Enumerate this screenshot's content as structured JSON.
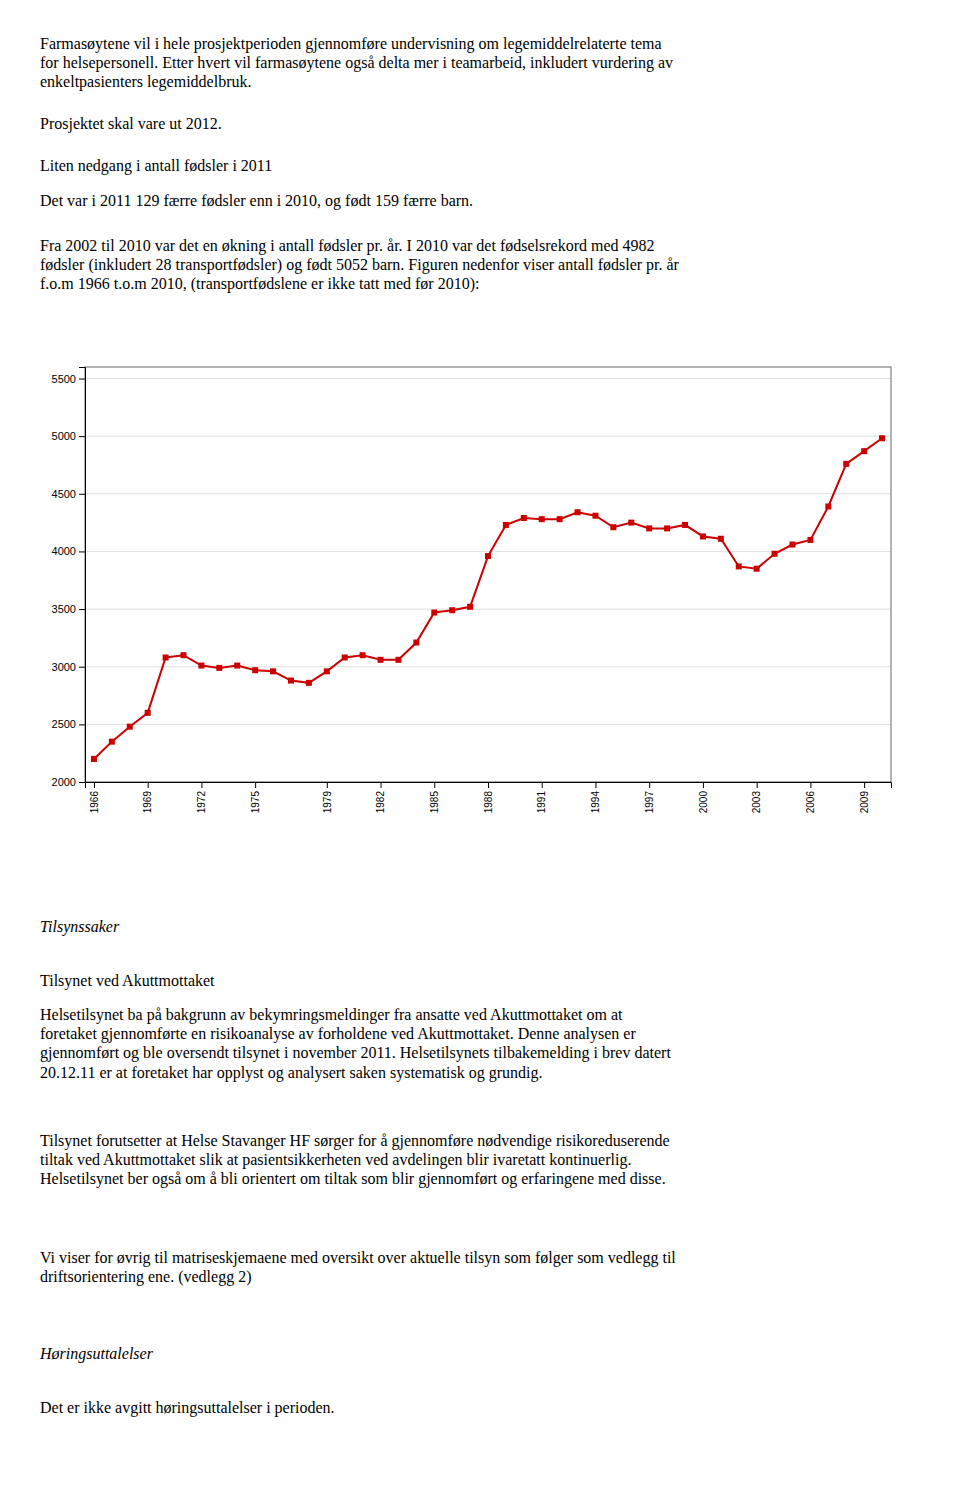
{
  "chart_data": {
    "type": "line",
    "x": [
      1966,
      1967,
      1968,
      1969,
      1970,
      1971,
      1972,
      1973,
      1974,
      1975,
      1976,
      1977,
      1978,
      1979,
      1980,
      1981,
      1982,
      1983,
      1984,
      1985,
      1986,
      1987,
      1988,
      1989,
      1990,
      1991,
      1992,
      1993,
      1994,
      1995,
      1996,
      1997,
      1998,
      1999,
      2000,
      2001,
      2002,
      2003,
      2004,
      2005,
      2006,
      2007,
      2008,
      2009,
      2010
    ],
    "values": [
      2200,
      2350,
      2480,
      2600,
      3080,
      3100,
      3010,
      2990,
      3010,
      2970,
      2960,
      2880,
      2860,
      2960,
      3080,
      3100,
      3060,
      3060,
      3210,
      3470,
      3490,
      3520,
      3960,
      4230,
      4290,
      4280,
      4280,
      4340,
      4310,
      4210,
      4250,
      4200,
      4200,
      4230,
      4130,
      4110,
      3870,
      3850,
      3980,
      4060,
      4100,
      4390,
      4760,
      4870,
      4982
    ],
    "color": "#cc0000",
    "marker": "square",
    "xlim": [
      1965.5,
      2010.5
    ],
    "xticks": [
      1966,
      1969,
      1972,
      1975,
      1979,
      1982,
      1985,
      1988,
      1991,
      1994,
      1997,
      2000,
      2003,
      2006,
      2009
    ],
    "ylim": [
      2000,
      5600
    ],
    "yticks": [
      2000,
      2500,
      3000,
      3500,
      4000,
      4500,
      5000,
      5500
    ],
    "grid": true,
    "annotations": [
      "Farmasøytene vil i hele prosjektperioden gjennomføre undervisning om legemiddelrelaterte tema\nfor helsepersonell. Etter hvert vil farmasøytene også delta mer i teamarbeid, inkludert vurdering av\nenkeltpasienters legemiddelbruk.",
      "Prosjektet skal vare ut 2012.",
      "Liten nedgang i antall fødsler i 2011",
      "Det var i 2011 129 færre fødsler enn i 2010, og født 159 færre barn.",
      "Fra 2002 til 2010 var det en økning i antall fødsler pr. år. I 2010 var det fødselsrekord med 4982\nfødsler (inkludert 28 transportfødsler) og født 5052 barn. Figuren nedenfor viser antall fødsler pr. år\nf.o.m 1966 t.o.m 2010, (transportfødslene er ikke tatt med før 2010):",
      "Tilsynssaker",
      "Tilsynet ved Akuttmottaket",
      "Helsetilsynet ba på bakgrunn av bekymringsmeldinger fra ansatte ved Akuttmottaket om at\nforetaket gjennomførte en risikoanalyse av forholdene ved Akuttmottaket. Denne analysen er\ngjennomført og ble oversendt tilsynet i november 2011. Helsetilsynets tilbakemelding i brev datert\n20.12.11 er at foretaket har opplyst og analysert saken systematisk og grundig.",
      "Tilsynet forutsetter at Helse Stavanger HF sørger for å gjennomføre nødvendige risikoreduserende\ntiltak ved Akuttmottaket slik at pasientsikkerheten ved avdelingen blir ivaretatt kontinuerlig.\nHelsetilsynet ber også om å bli orientert om tiltak som blir gjennomført og erfaringene med disse.",
      "Vi viser for øvrig til matriseskjemaene med oversikt over aktuelle tilsyn som følger som vedlegg til\ndriftsorientering ene. (vedlegg 2)",
      "Høringsuttalelser",
      "Det er ikke avgitt høringsuttalelser i perioden."
    ]
  }
}
